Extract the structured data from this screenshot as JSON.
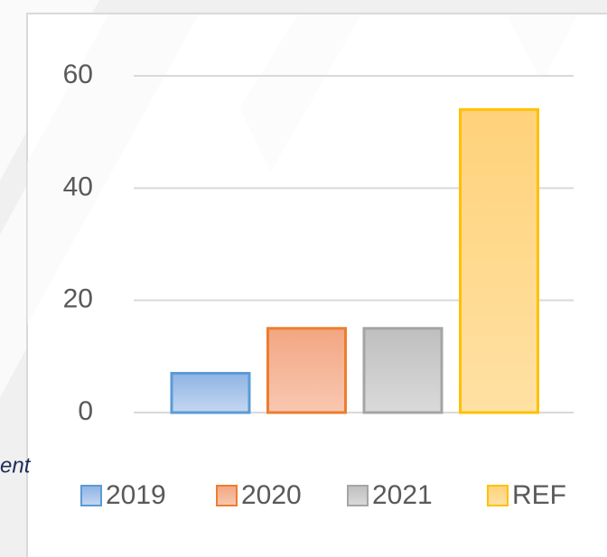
{
  "chart_data": {
    "type": "bar",
    "categories": [
      null
    ],
    "series": [
      {
        "name": "2019",
        "color": "#5b9bd5",
        "fill": "#a9c6ec",
        "values": [
          7
        ]
      },
      {
        "name": "2020",
        "color": "#ed7d31",
        "fill": "#f5b497",
        "values": [
          15
        ]
      },
      {
        "name": "2021",
        "color": "#a5a5a5",
        "fill": "#cbcbcb",
        "values": [
          15
        ]
      },
      {
        "name": "REF",
        "color": "#ffc000",
        "fill": "#ffd98c",
        "values": [
          54
        ]
      }
    ],
    "ylim": [
      0,
      60
    ],
    "yticks": [
      0,
      20,
      40,
      60
    ],
    "grid": true,
    "legend": "bottom",
    "annotations": [
      "ent"
    ]
  }
}
